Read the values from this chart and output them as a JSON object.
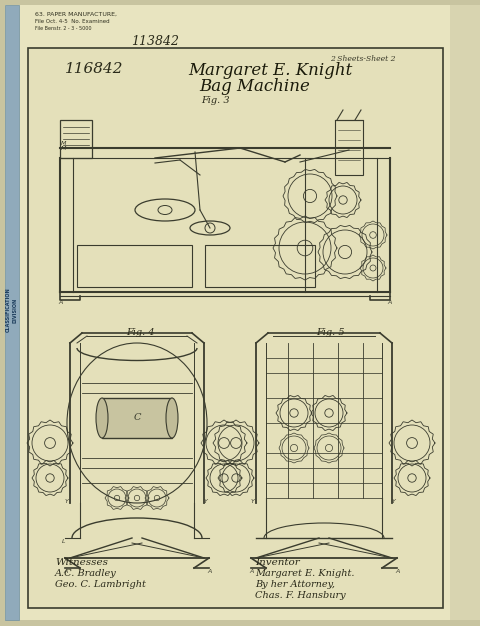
{
  "bg_outer": "#c8c4a0",
  "bg_paper": "#e8e4c0",
  "bg_inner": "#e4e0ba",
  "line_color": "#3a3c2e",
  "dim_color": "#505040",
  "title1": "Margaret E. Knight",
  "title2": "Bag Machine",
  "fig3_label": "Fig. 3",
  "fig4_label": "Fig. 4",
  "fig5_label": "Fig. 5",
  "patent_number": "116842",
  "sheet_text": "Sheet 2",
  "top_number": "113842",
  "witnesses_label": "Witnesses",
  "witness1": "A.C. Bradley",
  "witness2": "Geo. C. Lambright",
  "inventor_label": "Inventor",
  "inventor1": "Margaret E. Knight.",
  "inventor2": "By her Attorney,",
  "inventor3": "Chas. F. Hansbury",
  "classification_text": "CLASSIFICATION\nDIVISION",
  "stamp_line1": "63. PAPER MANUFACTURE,",
  "stamp_line2": "File Oct. 4-5  No. Examined"
}
